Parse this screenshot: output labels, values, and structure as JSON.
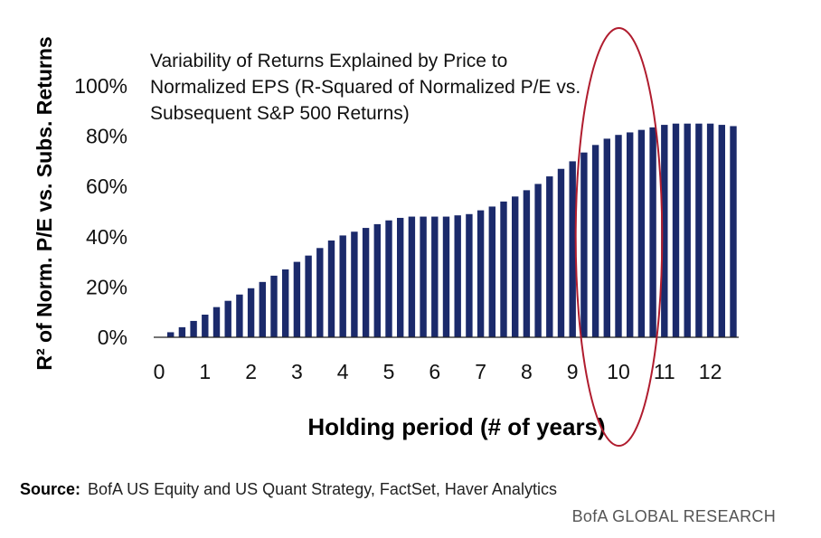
{
  "chart_data": {
    "type": "bar",
    "title_lines": [
      "Variability of Returns Explained by Price to",
      "Normalized EPS (R-Squared of Normalized P/E vs.",
      "Subsequent S&P 500 Returns)"
    ],
    "xlabel": "Holding period (# of years)",
    "ylabel": "R² of Norm. P/E vs. Subs. Returns",
    "x_ticks": [
      "0",
      "1",
      "2",
      "3",
      "4",
      "5",
      "6",
      "7",
      "8",
      "9",
      "10",
      "11",
      "12"
    ],
    "y_ticks": [
      "0%",
      "20%",
      "40%",
      "60%",
      "80%",
      "100%"
    ],
    "ylim": [
      0,
      100
    ],
    "xlim": [
      0,
      12.7
    ],
    "grid": false,
    "bar_color": "#1b2a6b",
    "highlight_color": "#b01c2e",
    "highlight_region_years": [
      9,
      11
    ],
    "x": [
      0.25,
      0.5,
      0.75,
      1.0,
      1.25,
      1.5,
      1.75,
      2.0,
      2.25,
      2.5,
      2.75,
      3.0,
      3.25,
      3.5,
      3.75,
      4.0,
      4.25,
      4.5,
      4.75,
      5.0,
      5.25,
      5.5,
      5.75,
      6.0,
      6.25,
      6.5,
      6.75,
      7.0,
      7.25,
      7.5,
      7.75,
      8.0,
      8.25,
      8.5,
      8.75,
      9.0,
      9.25,
      9.5,
      9.75,
      10.0,
      10.25,
      10.5,
      10.75,
      11.0,
      11.25,
      11.5,
      11.75,
      12.0,
      12.25,
      12.5
    ],
    "values": [
      2,
      4,
      6.5,
      9,
      12,
      14.5,
      17,
      19.5,
      22,
      24.5,
      27,
      30,
      32.5,
      35.5,
      38.5,
      40.5,
      42,
      43.5,
      45,
      46.5,
      47.5,
      48,
      48,
      48,
      48,
      48.5,
      49,
      50.5,
      52,
      54,
      56,
      58.5,
      61,
      64,
      67,
      70,
      73.5,
      76.5,
      79,
      80.5,
      81.5,
      82.5,
      83.5,
      84.5,
      85,
      85,
      85,
      85,
      84.5,
      84
    ]
  },
  "source": {
    "label": "Source:",
    "text": "BofA US Equity and US Quant Strategy, FactSet, Haver Analytics"
  },
  "brand": "BofA GLOBAL RESEARCH"
}
